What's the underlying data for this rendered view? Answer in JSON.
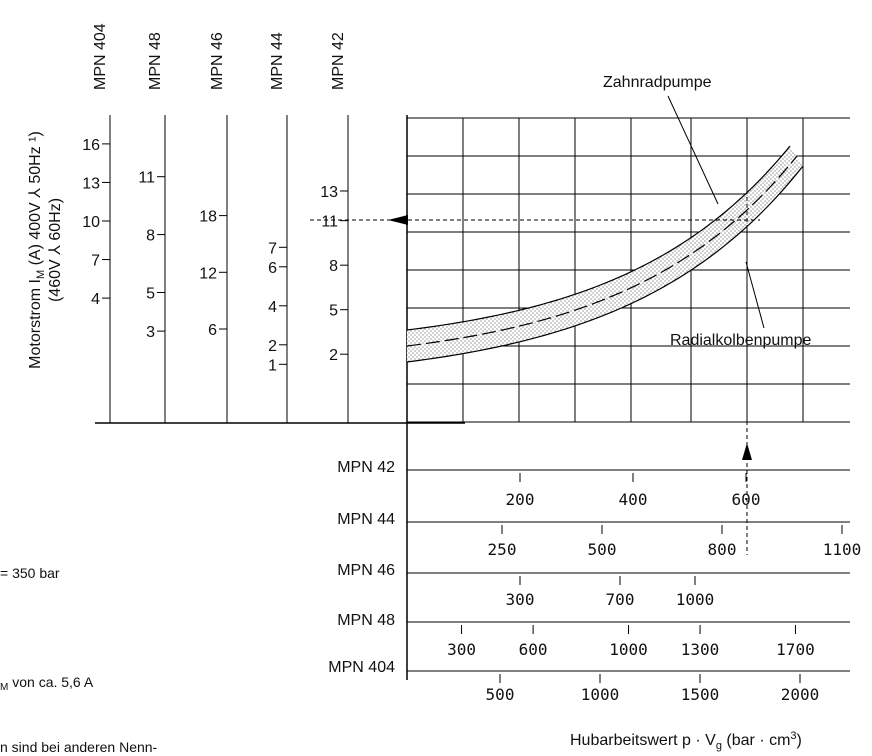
{
  "chart_data": {
    "type": "line",
    "ylabel_line1": "Motorstrom I",
    "ylabel_sub": "M",
    "ylabel_line1_tail": " (A) 400V ⅄ 50Hz ¹)",
    "ylabel_line2": "(460V ⅄ 60Hz)",
    "xlabel_main": "Hubarbeitswert p · V",
    "xlabel_sub": "g",
    "xlabel_tail": " (bar · cm",
    "xlabel_sup": "3",
    "xlabel_end": ")",
    "series": [
      {
        "name": "Zahnradpumpe",
        "style": "dashed-center"
      },
      {
        "name": "Radialkolbenpumpe",
        "style": "band"
      }
    ],
    "current_scales": [
      {
        "name": "MPN 404",
        "ticks": [
          {
            "label": "16",
            "at": 16
          },
          {
            "label": "13",
            "at": 13
          },
          {
            "label": "10",
            "at": 10
          },
          {
            "label": "7",
            "at": 7
          },
          {
            "label": "4",
            "at": 4
          }
        ]
      },
      {
        "name": "MPN 48",
        "ticks": [
          {
            "label": "11",
            "at": 11
          },
          {
            "label": "8",
            "at": 8
          },
          {
            "label": "5",
            "at": 5
          },
          {
            "label": "3",
            "at": 3
          }
        ]
      },
      {
        "name": "MPN 46",
        "ticks": [
          {
            "label": "18",
            "at": 18
          },
          {
            "label": "12",
            "at": 12
          },
          {
            "label": "6",
            "at": 6
          }
        ]
      },
      {
        "name": "MPN 44",
        "ticks": [
          {
            "label": "7",
            "at": 7
          },
          {
            "label": "6",
            "at": 6
          },
          {
            "label": "4",
            "at": 4
          },
          {
            "label": "2",
            "at": 2
          },
          {
            "label": "1",
            "at": 1
          }
        ]
      },
      {
        "name": "MPN 42",
        "ticks": [
          {
            "label": "13",
            "at": 13
          },
          {
            "label": "11",
            "at": 11
          },
          {
            "label": "8",
            "at": 8
          },
          {
            "label": "5",
            "at": 5
          },
          {
            "label": "2",
            "at": 2
          }
        ]
      }
    ],
    "work_scales": [
      {
        "name": "MPN 42",
        "ticks": [
          {
            "label": "200",
            "at": 200
          },
          {
            "label": "400",
            "at": 400
          },
          {
            "label": "600",
            "at": 600
          }
        ]
      },
      {
        "name": "MPN 44",
        "ticks": [
          {
            "label": "250",
            "at": 250
          },
          {
            "label": "500",
            "at": 500
          },
          {
            "label": "800",
            "at": 800
          },
          {
            "label": "1100",
            "at": 1100
          }
        ]
      },
      {
        "name": "MPN 46",
        "ticks": [
          {
            "label": "300",
            "at": 300
          },
          {
            "label": "700",
            "at": 700
          },
          {
            "label": "1000",
            "at": 1000
          }
        ]
      },
      {
        "name": "MPN 48",
        "ticks": [
          {
            "label": "300",
            "at": 300
          },
          {
            "label": "600",
            "at": 600
          },
          {
            "label": "1000",
            "at": 1000
          },
          {
            "label": "1300",
            "at": 1300
          },
          {
            "label": "1700",
            "at": 1700
          }
        ]
      },
      {
        "name": "MPN 404",
        "ticks": [
          {
            "label": "500",
            "at": 500
          },
          {
            "label": "1000",
            "at": 1000
          },
          {
            "label": "1500",
            "at": 1500
          },
          {
            "label": "2000",
            "at": 2000
          }
        ]
      }
    ],
    "example": {
      "mpn42_current": 11,
      "mpn42_work": 600
    }
  },
  "page_text": {
    "fragment_pressure": "= 350 bar",
    "fragment_current_a": "M",
    "fragment_current_b": " von ca. 5,6 A",
    "fragment_bottom": "n sind bei anderen Nenn-"
  }
}
